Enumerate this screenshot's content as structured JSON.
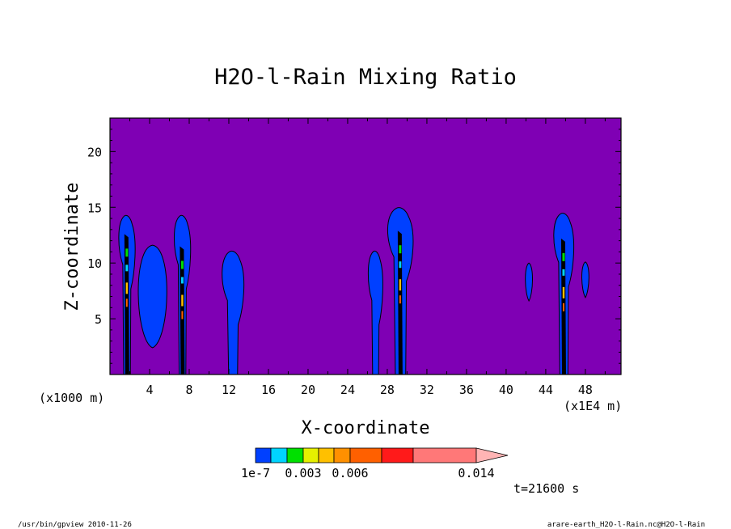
{
  "chart_data": {
    "type": "heatmap",
    "title": "H2O-l-Rain Mixing Ratio",
    "xlabel": "X-coordinate",
    "ylabel": "Z-coordinate",
    "x_scale_left": "(x1000 m)",
    "x_scale_right": "(x1E4 m)",
    "xlim": [
      0,
      51.6
    ],
    "ylim": [
      0,
      23
    ],
    "x_ticks": [
      4,
      8,
      12,
      16,
      20,
      24,
      28,
      32,
      36,
      40,
      44,
      48
    ],
    "x_tick_labels": [
      "4",
      "8",
      "12",
      "16",
      "20",
      "24",
      "28",
      "32",
      "36",
      "40",
      "44",
      "48"
    ],
    "y_ticks": [
      5,
      10,
      15,
      20
    ],
    "y_tick_labels": [
      "5",
      "10",
      "15",
      "20"
    ],
    "background_color": "#7f00b4",
    "colorbar": {
      "levels": [
        1e-07,
        0.001,
        0.002,
        0.003,
        0.004,
        0.005,
        0.006,
        0.008,
        0.01,
        0.014
      ],
      "colors": [
        "#0040ff",
        "#00d4ff",
        "#00e000",
        "#e6f000",
        "#ffc000",
        "#ff9000",
        "#ff6000",
        "#ff1a1a",
        "#ff7878",
        "#ffb4b4"
      ],
      "labels": [
        {
          "value": 1e-07,
          "text": "1e-7"
        },
        {
          "value": 0.003,
          "text": "0.003"
        },
        {
          "value": 0.006,
          "text": "0.006"
        },
        {
          "value": 0.014,
          "text": "0.014"
        }
      ]
    },
    "cells": [
      {
        "x_center": 1.7,
        "half_width": 0.9,
        "top": 14.2,
        "core_top": 12.6,
        "outer_color": "#0040ff"
      },
      {
        "x_center": 4.3,
        "half_width": 1.6,
        "top": 11.6,
        "bottom": 2.4,
        "outer_color": "#0040ff"
      },
      {
        "x_center": 7.3,
        "half_width": 0.9,
        "top": 14.2,
        "core_top": 11.5,
        "outer_color": "#0040ff"
      },
      {
        "x_center": 12.4,
        "half_width": 1.2,
        "top": 11.0,
        "outer_color": "#0040ff"
      },
      {
        "x_center": 26.8,
        "half_width": 0.8,
        "top": 11.0,
        "outer_color": "#0040ff"
      },
      {
        "x_center": 29.3,
        "half_width": 1.4,
        "top": 14.9,
        "core_top": 12.9,
        "outer_color": "#0040ff"
      },
      {
        "x_center": 42.3,
        "half_width": 0.4,
        "top": 10.0,
        "bottom": 6.6,
        "outer_color": "#0040ff"
      },
      {
        "x_center": 45.8,
        "half_width": 1.1,
        "top": 14.4,
        "core_top": 12.2,
        "outer_color": "#0040ff"
      },
      {
        "x_center": 48.0,
        "half_width": 0.4,
        "top": 10.1,
        "bottom": 6.9,
        "outer_color": "#0040ff"
      }
    ]
  },
  "annotations": {
    "time": "t=21600 s",
    "footer_left": "/usr/bin/gpview  2010-11-26",
    "footer_right": "arare-earth_H2O-l-Rain.nc@H2O-l-Rain"
  }
}
